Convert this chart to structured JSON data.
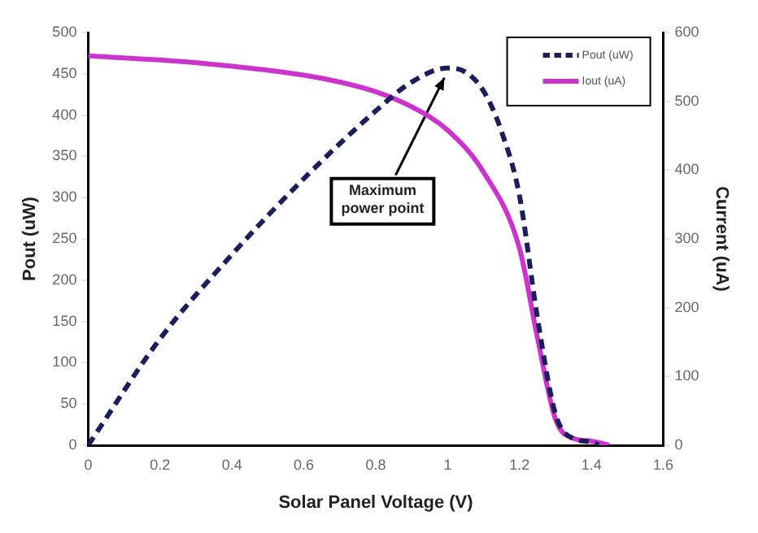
{
  "chart_data": {
    "type": "line",
    "xlabel": "Solar Panel Voltage (V)",
    "ylabel": "Pout (uW)",
    "y2label": "Current (uA)",
    "xlim": [
      0,
      1.6
    ],
    "xticks": [
      0,
      0.2,
      0.4,
      0.6,
      0.8,
      1,
      1.2,
      1.4,
      1.6
    ],
    "ylim": [
      0,
      500
    ],
    "yticks": [
      0,
      50,
      100,
      150,
      200,
      250,
      300,
      350,
      400,
      450,
      500
    ],
    "y2lim": [
      0,
      600
    ],
    "y2ticks": [
      0,
      100,
      200,
      300,
      400,
      500,
      600
    ],
    "grid": false,
    "legend": "top right",
    "marker": "none",
    "annotations": [
      {
        "text": "Maximum power point",
        "x": 1,
        "y": 457
      }
    ],
    "series": [
      {
        "name": "Pout (uW)",
        "color": "#1a1f5c",
        "line_style": "dashed",
        "x": [
          0,
          0.2,
          0.4,
          0.6,
          0.8,
          0.9,
          1,
          1.05,
          1.1,
          1.15,
          1.2,
          1.25,
          1.3,
          1.35,
          1.4,
          1.42
        ],
        "values": [
          0,
          129,
          231,
          323,
          405,
          440,
          457,
          452,
          429,
          380,
          302,
          154,
          38,
          8,
          4,
          0
        ]
      },
      {
        "name": "Iout (uA)",
        "color": "#cc33cc",
        "line_style": "solid",
        "axis": "y2",
        "x": [
          0,
          0.2,
          0.4,
          0.6,
          0.7,
          0.8,
          0.9,
          1,
          1.1,
          1.2,
          1.25,
          1.3,
          1.35,
          1.4,
          1.45
        ],
        "values": [
          566,
          560,
          551,
          538,
          528,
          514,
          492,
          458,
          397,
          286,
          156,
          38,
          10,
          6,
          0
        ]
      }
    ]
  }
}
